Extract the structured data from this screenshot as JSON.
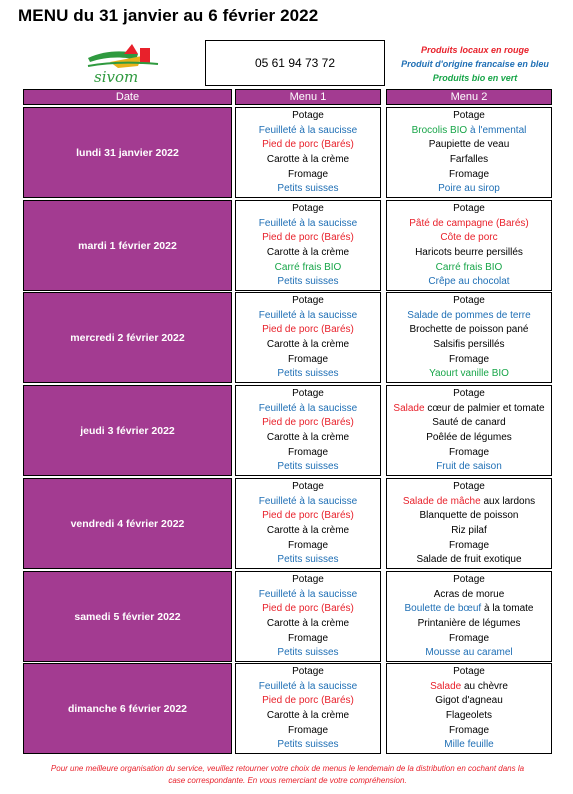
{
  "title": "MENU du 31 janvier au 6 février 2022",
  "phone": "05 61 94 73 72",
  "legend": {
    "red": "Produits locaux en rouge",
    "blue": "Produit d'origine francaise en bleu",
    "green": "Produits bio en vert"
  },
  "logo_text": "sivom",
  "colors": {
    "header_bg": "#a33b91",
    "red": "#e8212b",
    "blue": "#1f6fb5",
    "green": "#17a548"
  },
  "columns": {
    "date": "Date",
    "menu1": "Menu 1",
    "menu2": "Menu 2"
  },
  "days": [
    {
      "date": "lundi 31 janvier 2022",
      "menu1": [
        {
          "parts": [
            {
              "t": "Potage",
              "c": "black"
            }
          ]
        },
        {
          "parts": [
            {
              "t": "Feuilleté à la saucisse",
              "c": "blue"
            }
          ]
        },
        {
          "parts": [
            {
              "t": "Pied de porc (Barés)",
              "c": "red"
            }
          ]
        },
        {
          "parts": [
            {
              "t": "Carotte à la crème",
              "c": "black"
            }
          ]
        },
        {
          "parts": [
            {
              "t": "Fromage",
              "c": "black"
            }
          ]
        },
        {
          "parts": [
            {
              "t": "Petits suisses",
              "c": "blue"
            }
          ]
        }
      ],
      "menu2": [
        {
          "parts": [
            {
              "t": "Potage",
              "c": "black"
            }
          ]
        },
        {
          "parts": [
            {
              "t": "Brocolis BIO ",
              "c": "green"
            },
            {
              "t": "à l'emmental",
              "c": "blue"
            }
          ]
        },
        {
          "parts": [
            {
              "t": "Paupiette de veau",
              "c": "black"
            }
          ]
        },
        {
          "parts": [
            {
              "t": "Farfalles",
              "c": "black"
            }
          ]
        },
        {
          "parts": [
            {
              "t": "Fromage",
              "c": "black"
            }
          ]
        },
        {
          "parts": [
            {
              "t": "Poire au sirop",
              "c": "blue"
            }
          ]
        }
      ]
    },
    {
      "date": "mardi 1 février 2022",
      "menu1": [
        {
          "parts": [
            {
              "t": "Potage",
              "c": "black"
            }
          ]
        },
        {
          "parts": [
            {
              "t": "Feuilleté à la saucisse",
              "c": "blue"
            }
          ]
        },
        {
          "parts": [
            {
              "t": "Pied de porc (Barés)",
              "c": "red"
            }
          ]
        },
        {
          "parts": [
            {
              "t": "Carotte à la crème",
              "c": "black"
            }
          ]
        },
        {
          "parts": [
            {
              "t": "Carré frais BIO",
              "c": "green"
            }
          ]
        },
        {
          "parts": [
            {
              "t": "Petits suisses",
              "c": "blue"
            }
          ]
        }
      ],
      "menu2": [
        {
          "parts": [
            {
              "t": "Potage",
              "c": "black"
            }
          ]
        },
        {
          "parts": [
            {
              "t": "Pâté de campagne (Barés)",
              "c": "red"
            }
          ]
        },
        {
          "parts": [
            {
              "t": "Côte de porc",
              "c": "red"
            }
          ]
        },
        {
          "parts": [
            {
              "t": "Haricots beurre persillés",
              "c": "black"
            }
          ]
        },
        {
          "parts": [
            {
              "t": "Carré frais BIO",
              "c": "green"
            }
          ]
        },
        {
          "parts": [
            {
              "t": "Crêpe au chocolat",
              "c": "blue"
            }
          ]
        }
      ]
    },
    {
      "date": "mercredi 2 février 2022",
      "menu1": [
        {
          "parts": [
            {
              "t": "Potage",
              "c": "black"
            }
          ]
        },
        {
          "parts": [
            {
              "t": "Feuilleté à la saucisse",
              "c": "blue"
            }
          ]
        },
        {
          "parts": [
            {
              "t": "Pied de porc (Barés)",
              "c": "red"
            }
          ]
        },
        {
          "parts": [
            {
              "t": "Carotte à la crème",
              "c": "black"
            }
          ]
        },
        {
          "parts": [
            {
              "t": "Fromage",
              "c": "black"
            }
          ]
        },
        {
          "parts": [
            {
              "t": "Petits suisses",
              "c": "blue"
            }
          ]
        }
      ],
      "menu2": [
        {
          "parts": [
            {
              "t": "Potage",
              "c": "black"
            }
          ]
        },
        {
          "parts": [
            {
              "t": "Salade de pommes de terre",
              "c": "blue"
            }
          ]
        },
        {
          "parts": [
            {
              "t": "Brochette de poisson pané",
              "c": "black"
            }
          ]
        },
        {
          "parts": [
            {
              "t": "Salsifis persillés",
              "c": "black"
            }
          ]
        },
        {
          "parts": [
            {
              "t": "Fromage",
              "c": "black"
            }
          ]
        },
        {
          "parts": [
            {
              "t": "Yaourt vanille BIO",
              "c": "green"
            }
          ]
        }
      ]
    },
    {
      "date": "jeudi 3 février 2022",
      "menu1": [
        {
          "parts": [
            {
              "t": "Potage",
              "c": "black"
            }
          ]
        },
        {
          "parts": [
            {
              "t": "Feuilleté à la saucisse",
              "c": "blue"
            }
          ]
        },
        {
          "parts": [
            {
              "t": "Pied de porc (Barés)",
              "c": "red"
            }
          ]
        },
        {
          "parts": [
            {
              "t": "Carotte à la crème",
              "c": "black"
            }
          ]
        },
        {
          "parts": [
            {
              "t": "Fromage",
              "c": "black"
            }
          ]
        },
        {
          "parts": [
            {
              "t": "Petits suisses",
              "c": "blue"
            }
          ]
        }
      ],
      "menu2": [
        {
          "parts": [
            {
              "t": "Potage",
              "c": "black"
            }
          ]
        },
        {
          "parts": [
            {
              "t": "Salade ",
              "c": "red"
            },
            {
              "t": "cœur de palmier et tomate",
              "c": "black"
            }
          ]
        },
        {
          "parts": [
            {
              "t": "Sauté de canard",
              "c": "black"
            }
          ]
        },
        {
          "parts": [
            {
              "t": "Poêlée de légumes",
              "c": "black"
            }
          ]
        },
        {
          "parts": [
            {
              "t": "Fromage",
              "c": "black"
            }
          ]
        },
        {
          "parts": [
            {
              "t": "Fruit de saison",
              "c": "blue"
            }
          ]
        }
      ]
    },
    {
      "date": "vendredi 4 février 2022",
      "menu1": [
        {
          "parts": [
            {
              "t": "Potage",
              "c": "black"
            }
          ]
        },
        {
          "parts": [
            {
              "t": "Feuilleté à la saucisse",
              "c": "blue"
            }
          ]
        },
        {
          "parts": [
            {
              "t": "Pied de porc (Barés)",
              "c": "red"
            }
          ]
        },
        {
          "parts": [
            {
              "t": "Carotte à la crème",
              "c": "black"
            }
          ]
        },
        {
          "parts": [
            {
              "t": "Fromage",
              "c": "black"
            }
          ]
        },
        {
          "parts": [
            {
              "t": "Petits suisses",
              "c": "blue"
            }
          ]
        }
      ],
      "menu2": [
        {
          "parts": [
            {
              "t": "Potage",
              "c": "black"
            }
          ]
        },
        {
          "parts": [
            {
              "t": "Salade de mâche ",
              "c": "red"
            },
            {
              "t": "aux lardons",
              "c": "black"
            }
          ]
        },
        {
          "parts": [
            {
              "t": "Blanquette de poisson",
              "c": "black"
            }
          ]
        },
        {
          "parts": [
            {
              "t": "Riz pilaf",
              "c": "black"
            }
          ]
        },
        {
          "parts": [
            {
              "t": "Fromage",
              "c": "black"
            }
          ]
        },
        {
          "parts": [
            {
              "t": "Salade de fruit exotique",
              "c": "black"
            }
          ]
        }
      ]
    },
    {
      "date": "samedi 5 février 2022",
      "menu1": [
        {
          "parts": [
            {
              "t": "Potage",
              "c": "black"
            }
          ]
        },
        {
          "parts": [
            {
              "t": "Feuilleté à la saucisse",
              "c": "blue"
            }
          ]
        },
        {
          "parts": [
            {
              "t": "Pied de porc (Barés)",
              "c": "red"
            }
          ]
        },
        {
          "parts": [
            {
              "t": "Carotte à la crème",
              "c": "black"
            }
          ]
        },
        {
          "parts": [
            {
              "t": "Fromage",
              "c": "black"
            }
          ]
        },
        {
          "parts": [
            {
              "t": "Petits suisses",
              "c": "blue"
            }
          ]
        }
      ],
      "menu2": [
        {
          "parts": [
            {
              "t": "Potage",
              "c": "black"
            }
          ]
        },
        {
          "parts": [
            {
              "t": "Acras de morue",
              "c": "black"
            }
          ]
        },
        {
          "parts": [
            {
              "t": "Boulette de bœuf ",
              "c": "blue"
            },
            {
              "t": "à la tomate",
              "c": "black"
            }
          ]
        },
        {
          "parts": [
            {
              "t": "Printanière de légumes",
              "c": "black"
            }
          ]
        },
        {
          "parts": [
            {
              "t": "Fromage",
              "c": "black"
            }
          ]
        },
        {
          "parts": [
            {
              "t": "Mousse au caramel",
              "c": "blue"
            }
          ]
        }
      ]
    },
    {
      "date": "dimanche 6 février 2022",
      "menu1": [
        {
          "parts": [
            {
              "t": "Potage",
              "c": "black"
            }
          ]
        },
        {
          "parts": [
            {
              "t": "Feuilleté à la saucisse",
              "c": "blue"
            }
          ]
        },
        {
          "parts": [
            {
              "t": "Pied de porc (Barés)",
              "c": "red"
            }
          ]
        },
        {
          "parts": [
            {
              "t": "Carotte à la crème",
              "c": "black"
            }
          ]
        },
        {
          "parts": [
            {
              "t": "Fromage",
              "c": "black"
            }
          ]
        },
        {
          "parts": [
            {
              "t": "Petits suisses",
              "c": "blue"
            }
          ]
        }
      ],
      "menu2": [
        {
          "parts": [
            {
              "t": "Potage",
              "c": "black"
            }
          ]
        },
        {
          "parts": [
            {
              "t": "Salade ",
              "c": "red"
            },
            {
              "t": "au chèvre",
              "c": "black"
            }
          ]
        },
        {
          "parts": [
            {
              "t": "Gigot d'agneau",
              "c": "black"
            }
          ]
        },
        {
          "parts": [
            {
              "t": "Flageolets",
              "c": "black"
            }
          ]
        },
        {
          "parts": [
            {
              "t": "Fromage",
              "c": "black"
            }
          ]
        },
        {
          "parts": [
            {
              "t": "Mille feuille",
              "c": "blue"
            }
          ]
        }
      ]
    }
  ],
  "footer": {
    "line1": "Pour une meilleure organisation du service, veuillez retourner votre choix de menus le lendemain de la distribution en cochant dans la",
    "line2": "case correspondante. En vous remerciant de votre compréhension."
  }
}
